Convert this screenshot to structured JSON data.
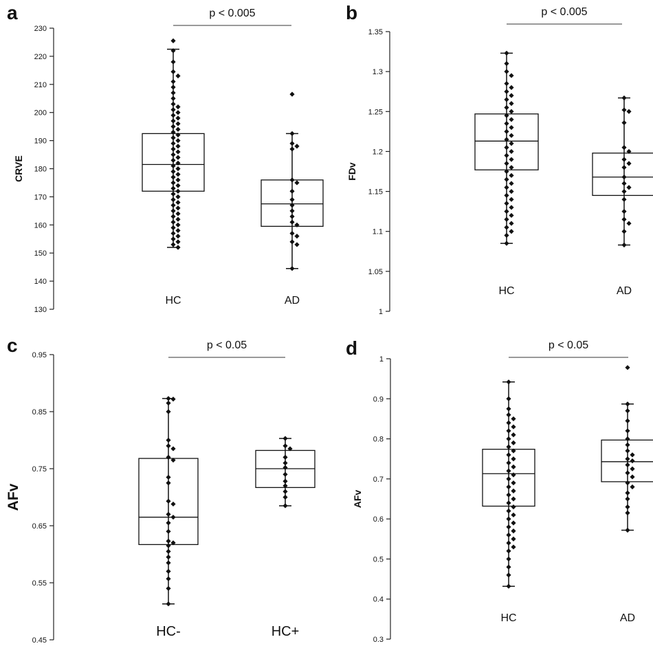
{
  "chart_data": [
    {
      "type": "box",
      "panel_label": "a",
      "ylabel": "CRVE",
      "ylim": [
        130,
        230
      ],
      "yticks": [
        "130",
        "140",
        "150",
        "160",
        "170",
        "180",
        "190",
        "200",
        "210",
        "220",
        "230"
      ],
      "annotation": "p < 0.005",
      "categories": [
        "HC",
        "AD"
      ],
      "series": [
        {
          "category": "HC",
          "whisker_low": 152,
          "q1": 172,
          "median": 181.5,
          "q3": 192.5,
          "whisker_high": 222.5,
          "points": [
            225.5,
            222,
            218,
            214.5,
            213,
            211,
            209,
            207,
            205,
            203,
            202,
            201,
            200,
            199,
            198,
            197,
            196,
            195,
            194,
            193,
            192,
            191,
            190,
            189,
            188,
            187,
            186,
            185,
            184,
            183,
            182,
            181,
            180,
            179,
            178,
            177,
            176,
            175,
            174,
            173,
            172,
            171,
            170,
            169,
            168,
            167,
            166,
            165,
            164,
            163,
            162,
            161,
            160,
            159,
            158,
            157,
            156,
            155,
            154,
            153,
            152
          ]
        },
        {
          "category": "AD",
          "whisker_low": 144.5,
          "q1": 159.5,
          "median": 167.5,
          "q3": 176,
          "whisker_high": 192.5,
          "points": [
            206.5,
            192.5,
            189,
            188,
            187,
            176,
            175,
            172,
            169,
            167,
            165,
            163,
            161,
            160,
            157,
            156,
            154,
            153,
            144.5
          ]
        }
      ]
    },
    {
      "type": "box",
      "panel_label": "b",
      "ylabel": "FDv",
      "ylim": [
        1,
        1.35
      ],
      "yticks": [
        "1",
        "1.05",
        "1.1",
        "1.15",
        "1.2",
        "1.25",
        "1.3",
        "1.35"
      ],
      "annotation": "p < 0.005",
      "categories": [
        "HC",
        "AD"
      ],
      "series": [
        {
          "category": "HC",
          "whisker_low": 1.085,
          "q1": 1.177,
          "median": 1.213,
          "q3": 1.247,
          "whisker_high": 1.323,
          "points": [
            1.323,
            1.31,
            1.3,
            1.295,
            1.285,
            1.28,
            1.275,
            1.27,
            1.265,
            1.26,
            1.255,
            1.25,
            1.245,
            1.24,
            1.235,
            1.23,
            1.225,
            1.22,
            1.215,
            1.21,
            1.205,
            1.2,
            1.195,
            1.19,
            1.185,
            1.18,
            1.175,
            1.17,
            1.165,
            1.16,
            1.155,
            1.15,
            1.145,
            1.14,
            1.135,
            1.13,
            1.125,
            1.12,
            1.115,
            1.11,
            1.105,
            1.1,
            1.095,
            1.085
          ]
        },
        {
          "category": "AD",
          "whisker_low": 1.083,
          "q1": 1.145,
          "median": 1.168,
          "q3": 1.198,
          "whisker_high": 1.267,
          "points": [
            1.267,
            1.252,
            1.25,
            1.236,
            1.205,
            1.2,
            1.19,
            1.185,
            1.18,
            1.168,
            1.16,
            1.155,
            1.15,
            1.14,
            1.125,
            1.115,
            1.11,
            1.1,
            1.083
          ]
        }
      ]
    },
    {
      "type": "box",
      "panel_label": "c",
      "ylabel": "AFv",
      "ylim": [
        0.45,
        0.95
      ],
      "yticks": [
        "0.45",
        "0.55",
        "0.65",
        "0.75",
        "0.85",
        "0.95"
      ],
      "annotation": "p < 0.05",
      "categories": [
        "HC-",
        "HC+"
      ],
      "series": [
        {
          "category": "HC-",
          "whisker_low": 0.513,
          "q1": 0.617,
          "median": 0.665,
          "q3": 0.768,
          "whisker_high": 0.873,
          "points": [
            0.873,
            0.872,
            0.865,
            0.85,
            0.8,
            0.79,
            0.785,
            0.77,
            0.765,
            0.735,
            0.725,
            0.693,
            0.688,
            0.67,
            0.665,
            0.655,
            0.64,
            0.623,
            0.62,
            0.615,
            0.605,
            0.595,
            0.585,
            0.57,
            0.557,
            0.54,
            0.513
          ]
        },
        {
          "category": "HC+",
          "whisker_low": 0.685,
          "q1": 0.717,
          "median": 0.75,
          "q3": 0.782,
          "whisker_high": 0.803,
          "points": [
            0.803,
            0.79,
            0.785,
            0.77,
            0.76,
            0.752,
            0.74,
            0.728,
            0.72,
            0.71,
            0.7,
            0.685
          ]
        }
      ]
    },
    {
      "type": "box",
      "panel_label": "d",
      "ylabel": "AFv",
      "ylim": [
        0.3,
        1
      ],
      "yticks": [
        "0.3",
        "0.4",
        "0.5",
        "0.6",
        "0.7",
        "0.8",
        "0.9",
        "1"
      ],
      "annotation": "p < 0.05",
      "categories": [
        "HC",
        "AD"
      ],
      "series": [
        {
          "category": "HC",
          "whisker_low": 0.432,
          "q1": 0.632,
          "median": 0.713,
          "q3": 0.774,
          "whisker_high": 0.942,
          "points": [
            0.942,
            0.9,
            0.875,
            0.86,
            0.85,
            0.84,
            0.83,
            0.82,
            0.81,
            0.8,
            0.79,
            0.78,
            0.77,
            0.76,
            0.75,
            0.74,
            0.73,
            0.72,
            0.71,
            0.7,
            0.69,
            0.68,
            0.67,
            0.66,
            0.65,
            0.64,
            0.63,
            0.62,
            0.61,
            0.6,
            0.59,
            0.58,
            0.57,
            0.56,
            0.55,
            0.54,
            0.53,
            0.52,
            0.5,
            0.48,
            0.46,
            0.432
          ]
        },
        {
          "category": "AD",
          "whisker_low": 0.572,
          "q1": 0.693,
          "median": 0.743,
          "q3": 0.797,
          "whisker_high": 0.887,
          "points": [
            0.978,
            0.887,
            0.87,
            0.845,
            0.82,
            0.8,
            0.785,
            0.77,
            0.76,
            0.75,
            0.745,
            0.735,
            0.725,
            0.715,
            0.705,
            0.69,
            0.68,
            0.665,
            0.65,
            0.63,
            0.615,
            0.572
          ]
        }
      ]
    }
  ]
}
